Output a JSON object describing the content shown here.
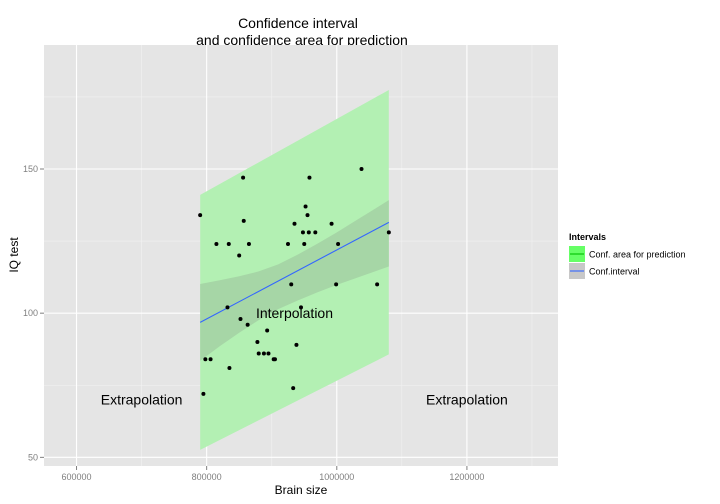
{
  "chart_data": {
    "type": "scatter",
    "title_line1": "Confidence interval",
    "title_line2": "and confidence area for prediction",
    "xlabel": "Brain size",
    "ylabel": "IQ test",
    "xlim": [
      550000,
      1340000
    ],
    "ylim": [
      47,
      193
    ],
    "x_ticks": [
      600000,
      800000,
      1000000,
      1200000
    ],
    "x_tick_labels": [
      "600000",
      "800000",
      "1000000",
      "1200000"
    ],
    "y_ticks": [
      50,
      100,
      150
    ],
    "y_tick_labels": [
      "50",
      "100",
      "150"
    ],
    "grid": true,
    "points": [
      {
        "x": 790000,
        "y": 134
      },
      {
        "x": 795000,
        "y": 72
      },
      {
        "x": 798000,
        "y": 84
      },
      {
        "x": 806000,
        "y": 84
      },
      {
        "x": 815000,
        "y": 124
      },
      {
        "x": 832000,
        "y": 102
      },
      {
        "x": 834000,
        "y": 124
      },
      {
        "x": 835000,
        "y": 81
      },
      {
        "x": 850000,
        "y": 120
      },
      {
        "x": 852000,
        "y": 98
      },
      {
        "x": 856000,
        "y": 147
      },
      {
        "x": 857000,
        "y": 132
      },
      {
        "x": 863000,
        "y": 96
      },
      {
        "x": 865000,
        "y": 124
      },
      {
        "x": 878000,
        "y": 90
      },
      {
        "x": 880000,
        "y": 86
      },
      {
        "x": 888000,
        "y": 86
      },
      {
        "x": 893000,
        "y": 94
      },
      {
        "x": 895000,
        "y": 86
      },
      {
        "x": 903000,
        "y": 84
      },
      {
        "x": 905000,
        "y": 84
      },
      {
        "x": 925000,
        "y": 124
      },
      {
        "x": 930000,
        "y": 110
      },
      {
        "x": 933000,
        "y": 74
      },
      {
        "x": 935000,
        "y": 131
      },
      {
        "x": 938000,
        "y": 89
      },
      {
        "x": 945000,
        "y": 102
      },
      {
        "x": 948000,
        "y": 128
      },
      {
        "x": 950000,
        "y": 124
      },
      {
        "x": 952000,
        "y": 137
      },
      {
        "x": 955000,
        "y": 134
      },
      {
        "x": 957000,
        "y": 128
      },
      {
        "x": 958000,
        "y": 147
      },
      {
        "x": 967000,
        "y": 128
      },
      {
        "x": 992000,
        "y": 131
      },
      {
        "x": 999000,
        "y": 110
      },
      {
        "x": 1002000,
        "y": 124
      },
      {
        "x": 1038000,
        "y": 150
      },
      {
        "x": 1062000,
        "y": 110
      },
      {
        "x": 1080000,
        "y": 128
      }
    ],
    "fit_line": {
      "x": [
        790000,
        1080000
      ],
      "y": [
        96.8,
        131.5
      ]
    },
    "confidence_band": {
      "x": [
        790000,
        820000,
        850000,
        880000,
        910000,
        940000,
        970000,
        1000000,
        1030000,
        1060000,
        1080000
      ],
      "lower": [
        83.5,
        88.5,
        93.2,
        97.6,
        101.4,
        104.4,
        107.2,
        109.8,
        112.2,
        114.6,
        116.2
      ],
      "upper": [
        110.1,
        111.4,
        112.8,
        114.5,
        116.9,
        120.3,
        124.1,
        128.0,
        132.2,
        136.4,
        139.2
      ]
    },
    "prediction_band": {
      "x": [
        790000,
        1080000
      ],
      "lower": [
        52.6,
        85.7
      ],
      "upper": [
        141.0,
        177.4
      ]
    },
    "annotations": [
      {
        "text": "Extrapolation",
        "x": 700000,
        "y": 70
      },
      {
        "text": "Interpolation",
        "x": 935000,
        "y": 100
      },
      {
        "text": "Extrapolation",
        "x": 1200000,
        "y": 70
      }
    ],
    "legend": {
      "title": "Intervals",
      "placement": "right",
      "items": [
        {
          "label": "Conf. area for prediction",
          "fill": "#66ff66",
          "line": "#00c000"
        },
        {
          "label": "Conf.interval",
          "fill": "#c8c8c8",
          "line": "#3366ff"
        }
      ]
    },
    "colors": {
      "panel": "#e5e5e5",
      "grid": "#ffffff",
      "prediction_fill": "#b3f0b3",
      "confidence_fill": "#a6d6a6",
      "fit_line": "#3366ff",
      "point": "#000000"
    }
  }
}
